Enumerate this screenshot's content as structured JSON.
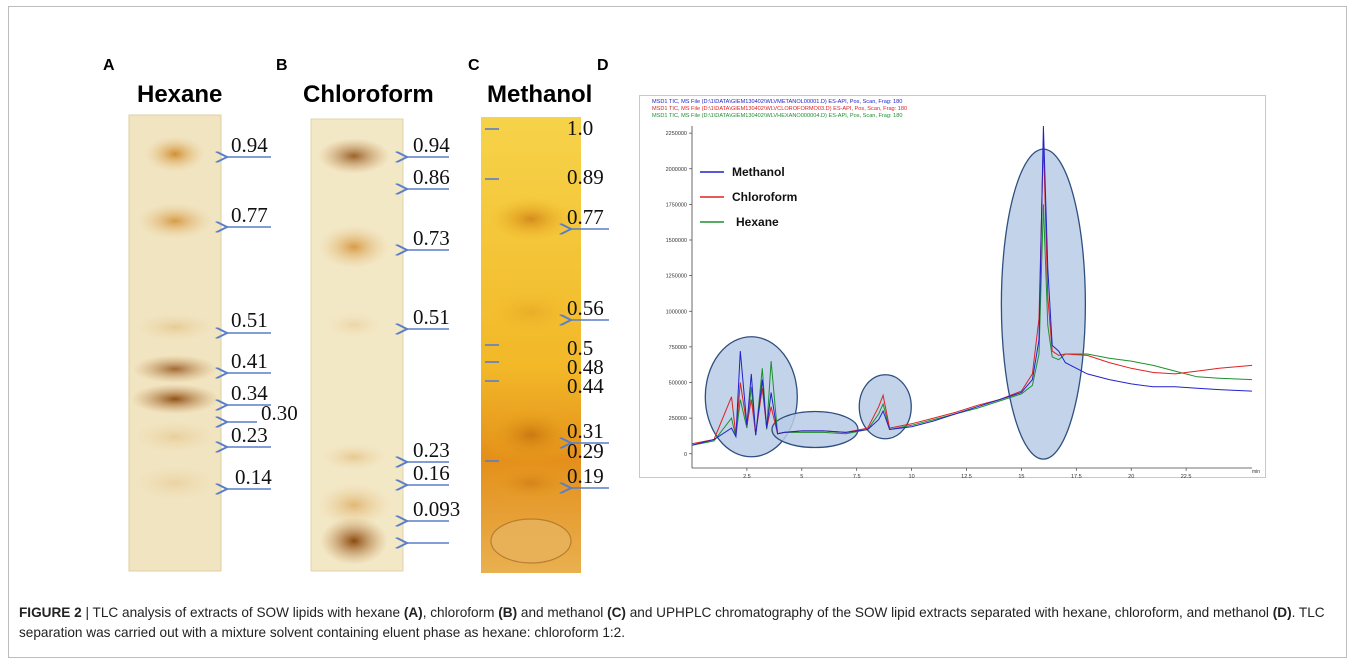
{
  "panels": {
    "a": {
      "letter": "A",
      "title": "Hexane",
      "rf": [
        "0.94",
        "0.77",
        "0.51",
        "0.41",
        "0.34",
        "0.30",
        "0.23",
        "0.14"
      ]
    },
    "b": {
      "letter": "B",
      "title": "Chloroform",
      "rf": [
        "0.94",
        "0.86",
        "0.73",
        "0.51",
        "0.23",
        "0.16",
        "0.093"
      ]
    },
    "c": {
      "letter": "C",
      "title": "Methanol",
      "rf": [
        "1.0",
        "0.89",
        "0.77",
        "0.56",
        "0.5",
        "0.48",
        "0.44",
        "0.31",
        "0.29",
        "0.19"
      ]
    },
    "d": {
      "letter": "D"
    }
  },
  "chromatogram": {
    "file_lines": [
      "MSD1 TIC, MS File (D:\\1\\DATA\\GIEM130402\\WLVMETANOL00001.D)    ES-API, Pos, Scan, Frag: 180",
      "MSD1 TIC, MS File (D:\\1\\DATA\\GIEM130402\\WLVCLOROFORMO03.D)    ES-API, Pos, Scan, Frag: 180",
      "MSD1 TIC, MS File (D:\\1\\DATA\\GIEM130402\\WLVHEXANO000004.D)    ES-API, Pos, Scan, Frag: 180"
    ],
    "x_unit": "min",
    "colors": {
      "methanol": "#2222cc",
      "chloroform": "#dd2222",
      "hexane": "#1e8f2e",
      "circle_fill": "#b9cde6",
      "circle_stroke": "#2f4f7f"
    }
  },
  "chart_data": {
    "type": "line",
    "xlim": [
      0,
      25.5
    ],
    "ylim": [
      -100000,
      2300000
    ],
    "x_ticks": [
      "2.5",
      "5",
      "7.5",
      "10",
      "12.5",
      "15",
      "17.5",
      "20",
      "22.5"
    ],
    "y_ticks": [
      "0",
      "250000",
      "500000",
      "750000",
      "1000000",
      "1250000",
      "1500000",
      "1750000",
      "2000000",
      "2250000"
    ],
    "legend": [
      "Methanol",
      "Chloroform",
      "Hexane"
    ],
    "legend_position": "top-left",
    "series": [
      {
        "name": "Methanol",
        "x": [
          0,
          1,
          1.8,
          2,
          2.2,
          2.5,
          2.7,
          2.9,
          3.2,
          3.4,
          3.6,
          3.9,
          4.2,
          5,
          6,
          7,
          8,
          8.5,
          8.7,
          9,
          10,
          11,
          12,
          13,
          14,
          15,
          15.5,
          15.8,
          16,
          16.2,
          16.4,
          16.7,
          17,
          18,
          19,
          20,
          21,
          22,
          23,
          24,
          25.5
        ],
        "y": [
          60000,
          100000,
          180000,
          120000,
          720000,
          200000,
          560000,
          130000,
          520000,
          180000,
          430000,
          140000,
          150000,
          160000,
          160000,
          150000,
          170000,
          240000,
          300000,
          170000,
          190000,
          230000,
          280000,
          330000,
          380000,
          430000,
          520000,
          800000,
          2300000,
          1300000,
          760000,
          720000,
          640000,
          560000,
          520000,
          490000,
          470000,
          470000,
          460000,
          450000,
          440000
        ]
      },
      {
        "name": "Chloroform",
        "x": [
          0,
          1,
          1.8,
          2,
          2.2,
          2.5,
          2.7,
          2.9,
          3.2,
          3.4,
          3.6,
          3.9,
          4.2,
          5,
          6,
          7,
          8,
          8.5,
          8.7,
          9,
          10,
          11,
          12,
          13,
          14,
          15,
          15.5,
          15.8,
          16,
          16.2,
          16.4,
          16.7,
          17,
          18,
          19,
          20,
          21,
          22,
          23,
          24,
          25.5
        ],
        "y": [
          70000,
          100000,
          400000,
          130000,
          500000,
          200000,
          380000,
          140000,
          460000,
          180000,
          330000,
          140000,
          150000,
          160000,
          160000,
          150000,
          180000,
          330000,
          410000,
          180000,
          210000,
          250000,
          290000,
          340000,
          380000,
          440000,
          560000,
          950000,
          2200000,
          1100000,
          720000,
          690000,
          700000,
          690000,
          640000,
          600000,
          570000,
          560000,
          580000,
          600000,
          620000
        ]
      },
      {
        "name": "Hexane",
        "x": [
          0,
          1,
          1.8,
          2,
          2.2,
          2.5,
          2.7,
          2.9,
          3.2,
          3.4,
          3.6,
          3.9,
          4.2,
          5,
          6,
          7,
          8,
          8.5,
          8.7,
          9,
          10,
          11,
          12,
          13,
          14,
          15,
          15.5,
          15.8,
          16,
          16.2,
          16.4,
          16.7,
          17,
          18,
          19,
          20,
          21,
          22,
          23,
          24,
          25.5
        ],
        "y": [
          60000,
          90000,
          250000,
          120000,
          380000,
          180000,
          470000,
          130000,
          600000,
          170000,
          650000,
          140000,
          150000,
          150000,
          150000,
          140000,
          170000,
          280000,
          350000,
          170000,
          200000,
          240000,
          280000,
          320000,
          370000,
          420000,
          480000,
          700000,
          1750000,
          900000,
          680000,
          660000,
          700000,
          700000,
          670000,
          650000,
          620000,
          580000,
          540000,
          530000,
          520000
        ]
      }
    ]
  },
  "caption": {
    "fig_label": "FIGURE 2",
    "sep": " | ",
    "t1": "TLC analysis of extracts of SOW lipids with hexane ",
    "b1": "(A)",
    "t2": ", chloroform ",
    "b2": "(B)",
    "t3": " and methanol ",
    "b3": "(C)",
    "t4": " and UPHPLC chromatography of the SOW lipid extracts separated with hexane, chloroform, and methanol ",
    "b4": "(D)",
    "t5": ". TLC separation was carried out with a mixture solvent containing eluent phase as hexane: chloroform 1:2."
  }
}
